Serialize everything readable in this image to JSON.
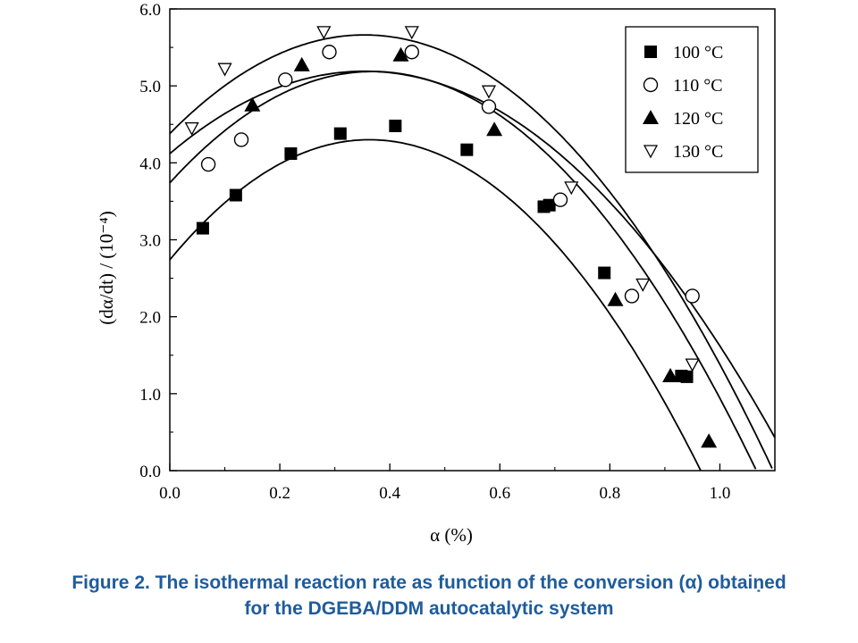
{
  "chart_data": {
    "type": "scatter",
    "xlabel": "α (%)",
    "ylabel": "(dα/dt) / (10⁻⁴)",
    "xlim": [
      0.0,
      1.1
    ],
    "ylim": [
      0.0,
      6.0
    ],
    "xticks": [
      "0.0",
      "0.2",
      "0.4",
      "0.6",
      "0.8",
      "1.0"
    ],
    "yticks": [
      "0.0",
      "1.0",
      "2.0",
      "3.0",
      "4.0",
      "5.0",
      "6.0"
    ],
    "grid": false,
    "legend_position": "top-right",
    "series": [
      {
        "name": "100 °C",
        "marker": "filled-square",
        "points": [
          [
            0.06,
            3.15
          ],
          [
            0.12,
            3.58
          ],
          [
            0.22,
            4.12
          ],
          [
            0.31,
            4.38
          ],
          [
            0.41,
            4.48
          ],
          [
            0.54,
            4.17
          ],
          [
            0.68,
            3.43
          ],
          [
            0.69,
            3.45
          ],
          [
            0.79,
            2.57
          ],
          [
            0.93,
            1.23
          ],
          [
            0.94,
            1.22
          ]
        ],
        "fit": [
          2.74,
          8.6,
          -11.85
        ]
      },
      {
        "name": "110 °C",
        "marker": "open-circle",
        "points": [
          [
            0.07,
            3.98
          ],
          [
            0.13,
            4.3
          ],
          [
            0.21,
            5.08
          ],
          [
            0.29,
            5.44
          ],
          [
            0.44,
            5.44
          ],
          [
            0.58,
            4.73
          ],
          [
            0.71,
            3.52
          ],
          [
            0.84,
            2.27
          ],
          [
            0.95,
            2.27
          ]
        ],
        "fit": [
          4.12,
          6.05,
          -8.55
        ]
      },
      {
        "name": "120 °C",
        "marker": "filled-triangle-up",
        "points": [
          [
            0.15,
            4.75
          ],
          [
            0.24,
            5.27
          ],
          [
            0.42,
            5.4
          ],
          [
            0.59,
            4.43
          ],
          [
            0.81,
            2.22
          ],
          [
            0.91,
            1.23
          ],
          [
            0.98,
            0.38
          ]
        ],
        "fit": [
          3.74,
          7.85,
          -10.65
        ]
      },
      {
        "name": "130 °C",
        "marker": "open-triangle-down",
        "points": [
          [
            0.04,
            4.45
          ],
          [
            0.1,
            5.22
          ],
          [
            0.28,
            5.7
          ],
          [
            0.44,
            5.7
          ],
          [
            0.58,
            4.93
          ],
          [
            0.73,
            3.68
          ],
          [
            0.86,
            2.42
          ],
          [
            0.95,
            1.38
          ]
        ],
        "fit": [
          4.38,
          7.25,
          -10.25
        ]
      }
    ]
  },
  "caption": {
    "line1": "Figure 2. The isothermal reaction rate as function of the conversion (α) obtaiṇed",
    "line2": "for the DGEBA/DDM autocatalytic system"
  }
}
